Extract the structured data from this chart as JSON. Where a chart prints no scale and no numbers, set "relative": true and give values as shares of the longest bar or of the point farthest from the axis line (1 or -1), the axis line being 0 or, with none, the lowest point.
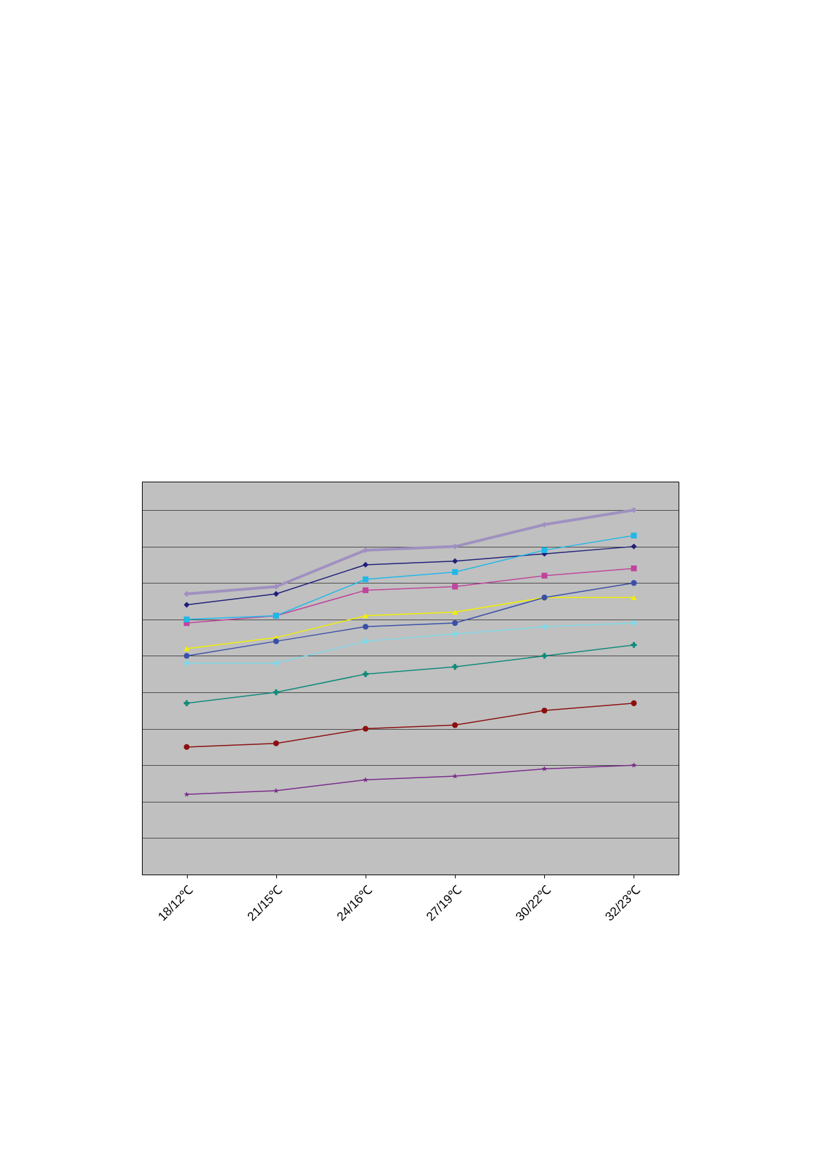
{
  "chart_data": {
    "type": "line",
    "relative": true,
    "grid": "y",
    "categories": [
      "18/12℃",
      "21/15℃",
      "24/16℃",
      "27/19℃",
      "30/22℃",
      "32/23℃"
    ],
    "series": [
      {
        "color": "#1f1f7a",
        "marker": "diamond",
        "values": [
          0.74,
          0.77,
          0.85,
          0.86,
          0.88,
          0.9
        ]
      },
      {
        "color": "#c0449c",
        "marker": "square",
        "values": [
          0.69,
          0.71,
          0.78,
          0.79,
          0.82,
          0.84
        ]
      },
      {
        "color": "#f0f000",
        "marker": "triangle",
        "values": [
          0.62,
          0.65,
          0.71,
          0.72,
          0.76,
          0.76
        ]
      },
      {
        "color": "#7fd8e8",
        "marker": "cross",
        "values": [
          0.58,
          0.58,
          0.64,
          0.66,
          0.68,
          0.69
        ]
      },
      {
        "color": "#7a2a8a",
        "marker": "star",
        "values": [
          0.22,
          0.23,
          0.26,
          0.27,
          0.29,
          0.3
        ]
      },
      {
        "color": "#8b0f0f",
        "marker": "circle",
        "values": [
          0.35,
          0.36,
          0.4,
          0.41,
          0.45,
          0.47
        ]
      },
      {
        "color": "#0f8a7a",
        "marker": "cross",
        "values": [
          0.47,
          0.5,
          0.55,
          0.57,
          0.6,
          0.63
        ]
      },
      {
        "color": "#3a50a8",
        "marker": "circle",
        "values": [
          0.6,
          0.64,
          0.68,
          0.69,
          0.76,
          0.8
        ]
      },
      {
        "color": "#20b8e8",
        "marker": "square",
        "values": [
          0.7,
          0.71,
          0.81,
          0.83,
          0.89,
          0.93
        ]
      },
      {
        "color": "#a090c0",
        "marker": "diamond",
        "values": [
          0.77,
          0.79,
          0.89,
          0.9,
          0.96,
          1
        ]
      }
    ]
  }
}
